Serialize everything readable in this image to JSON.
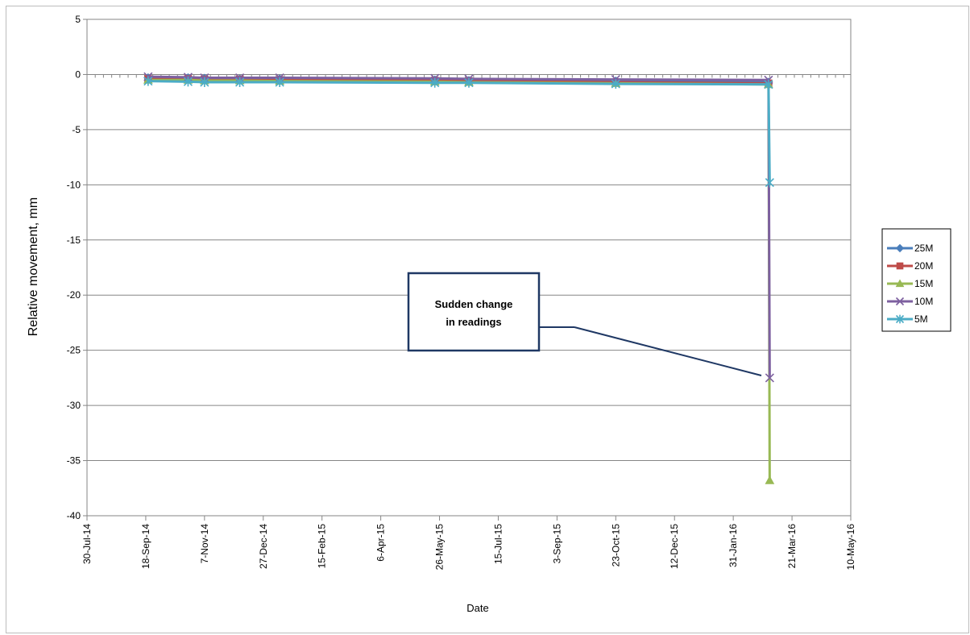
{
  "chart_data": {
    "type": "line",
    "title": "",
    "xlabel": "Date",
    "ylabel": "Relative movement, mm",
    "ylim": [
      -40,
      5
    ],
    "y_ticks": [
      5,
      0,
      -5,
      -10,
      -15,
      -20,
      -25,
      -30,
      -35,
      -40
    ],
    "xlim": [
      "30-Jul-14",
      "10-May-16"
    ],
    "x_ticks": [
      "30-Jul-14",
      "18-Sep-14",
      "7-Nov-14",
      "27-Dec-14",
      "15-Feb-15",
      "6-Apr-15",
      "26-May-15",
      "15-Jul-15",
      "3-Sep-15",
      "23-Oct-15",
      "12-Dec-15",
      "31-Jan-16",
      "21-Mar-16",
      "10-May-16"
    ],
    "grid": "horizontal",
    "legend": "right",
    "annotation": {
      "text_lines": [
        "Sudden change",
        "in readings"
      ]
    },
    "series": [
      {
        "name": "25M",
        "color": "#4a7ebb",
        "marker": "diamond",
        "x": [
          "2014-09-20",
          "2014-10-24",
          "2014-11-07",
          "2014-12-07",
          "2015-01-10",
          "2015-05-22",
          "2015-06-20",
          "2015-10-23",
          "2016-03-01"
        ],
        "y": [
          -0.3,
          -0.3,
          -0.35,
          -0.4,
          -0.4,
          -0.5,
          -0.55,
          -0.6,
          -0.7
        ]
      },
      {
        "name": "20M",
        "color": "#be4b48",
        "marker": "square",
        "x": [
          "2014-09-20",
          "2014-10-24",
          "2014-11-07",
          "2014-12-07",
          "2015-01-10",
          "2015-05-22",
          "2015-06-20",
          "2015-10-23",
          "2016-03-01"
        ],
        "y": [
          -0.4,
          -0.4,
          -0.45,
          -0.45,
          -0.5,
          -0.55,
          -0.6,
          -0.7,
          -0.8
        ]
      },
      {
        "name": "15M",
        "color": "#98b954",
        "marker": "triangle",
        "x": [
          "2014-09-20",
          "2014-10-24",
          "2014-11-07",
          "2014-12-07",
          "2015-01-10",
          "2015-05-22",
          "2015-06-20",
          "2015-10-23",
          "2016-03-01",
          "2016-03-02"
        ],
        "y": [
          -0.5,
          -0.5,
          -0.55,
          -0.55,
          -0.6,
          -0.65,
          -0.7,
          -0.8,
          -0.9,
          -36.8
        ]
      },
      {
        "name": "10M",
        "color": "#7d60a0",
        "marker": "x",
        "x": [
          "2014-09-20",
          "2014-10-24",
          "2014-11-07",
          "2014-12-07",
          "2015-01-10",
          "2015-05-22",
          "2015-06-20",
          "2015-10-23",
          "2016-03-01",
          "2016-03-02"
        ],
        "y": [
          -0.2,
          -0.25,
          -0.3,
          -0.3,
          -0.3,
          -0.35,
          -0.4,
          -0.45,
          -0.5,
          -27.5
        ]
      },
      {
        "name": "5M",
        "color": "#4bacc6",
        "marker": "star",
        "x": [
          "2014-09-20",
          "2014-10-24",
          "2014-11-07",
          "2014-12-07",
          "2015-01-10",
          "2015-05-22",
          "2015-06-20",
          "2015-10-23",
          "2016-03-01",
          "2016-03-02"
        ],
        "y": [
          -0.6,
          -0.65,
          -0.7,
          -0.7,
          -0.7,
          -0.75,
          -0.75,
          -0.85,
          -0.9,
          -9.8
        ]
      }
    ]
  }
}
